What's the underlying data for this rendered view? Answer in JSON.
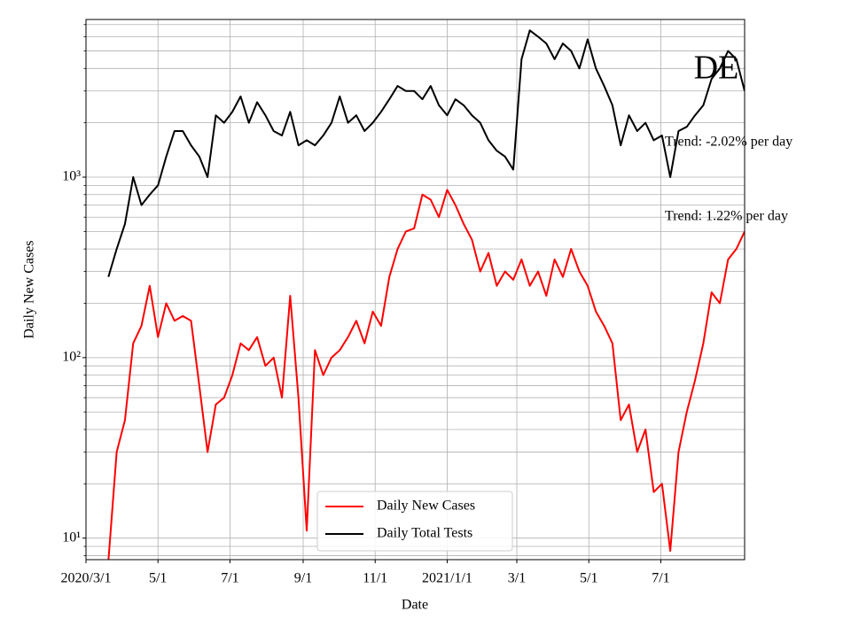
{
  "chart_data": {
    "type": "line",
    "log_scale_y": true,
    "grid": true,
    "legend": "lower center",
    "xlabel": "Date",
    "ylabel": "Daily New Cases",
    "annotations": [
      "DE",
      "Trend: -2.02% per day",
      "Trend: 1.22% per day"
    ],
    "x": [
      "2020-03-20",
      "2020-03-27",
      "2020-04-03",
      "2020-04-10",
      "2020-04-17",
      "2020-04-24",
      "2020-05-01",
      "2020-05-08",
      "2020-05-15",
      "2020-05-22",
      "2020-05-29",
      "2020-06-05",
      "2020-06-12",
      "2020-06-19",
      "2020-06-26",
      "2020-07-03",
      "2020-07-10",
      "2020-07-17",
      "2020-07-24",
      "2020-07-31",
      "2020-08-07",
      "2020-08-14",
      "2020-08-21",
      "2020-08-28",
      "2020-09-04",
      "2020-09-11",
      "2020-09-18",
      "2020-09-25",
      "2020-10-02",
      "2020-10-09",
      "2020-10-16",
      "2020-10-23",
      "2020-10-30",
      "2020-11-06",
      "2020-11-13",
      "2020-11-20",
      "2020-11-27",
      "2020-12-04",
      "2020-12-11",
      "2020-12-18",
      "2020-12-25",
      "2021-01-01",
      "2021-01-08",
      "2021-01-15",
      "2021-01-22",
      "2021-01-29",
      "2021-02-05",
      "2021-02-12",
      "2021-02-19",
      "2021-02-26",
      "2021-03-05",
      "2021-03-12",
      "2021-03-19",
      "2021-03-26",
      "2021-04-02",
      "2021-04-09",
      "2021-04-16",
      "2021-04-23",
      "2021-04-30",
      "2021-05-07",
      "2021-05-14",
      "2021-05-21",
      "2021-05-28",
      "2021-06-04",
      "2021-06-11",
      "2021-06-18",
      "2021-06-25",
      "2021-07-02",
      "2021-07-09",
      "2021-07-16",
      "2021-07-23",
      "2021-07-30",
      "2021-08-06",
      "2021-08-13",
      "2021-08-20",
      "2021-08-27",
      "2021-09-03",
      "2021-09-10"
    ],
    "series": [
      {
        "name": "Daily New Cases",
        "color": "#ff0000",
        "values": [
          7.5,
          30,
          45,
          120,
          150,
          250,
          130,
          200,
          160,
          170,
          160,
          70,
          30,
          55,
          60,
          80,
          120,
          110,
          130,
          90,
          100,
          60,
          220,
          60,
          11,
          110,
          80,
          100,
          110,
          130,
          160,
          120,
          180,
          150,
          280,
          400,
          500,
          520,
          800,
          750,
          600,
          850,
          700,
          550,
          450,
          300,
          380,
          250,
          300,
          270,
          350,
          250,
          300,
          220,
          350,
          280,
          400,
          300,
          250,
          180,
          150,
          120,
          45,
          55,
          30,
          40,
          18,
          20,
          8.5,
          30,
          50,
          75,
          120,
          230,
          200,
          350,
          400,
          500
        ]
      },
      {
        "name": "Daily Total Tests",
        "color": "#000000",
        "values": [
          280,
          400,
          550,
          1000,
          700,
          800,
          900,
          1300,
          1800,
          1800,
          1500,
          1300,
          1000,
          2200,
          2000,
          2300,
          2800,
          2000,
          2600,
          2200,
          1800,
          1700,
          2300,
          1500,
          1600,
          1500,
          1700,
          2000,
          2800,
          2000,
          2200,
          1800,
          2000,
          2300,
          2700,
          3200,
          3000,
          3000,
          2700,
          3200,
          2500,
          2200,
          2700,
          2500,
          2200,
          2000,
          1600,
          1400,
          1300,
          1100,
          4500,
          6500,
          6000,
          5500,
          4500,
          5500,
          5000,
          4000,
          5800,
          4000,
          3200,
          2500,
          1500,
          2200,
          1800,
          2000,
          1600,
          1700,
          1000,
          1800,
          1900,
          2200,
          2500,
          3500,
          4000,
          5000,
          4500,
          3000
        ]
      }
    ],
    "xlim": [
      "2020-03-01",
      "2021-09-10"
    ],
    "xticks": [
      {
        "value": "2020-03-01",
        "label": "2020/3/1"
      },
      {
        "value": "2020-05-01",
        "label": "5/1"
      },
      {
        "value": "2020-07-01",
        "label": "7/1"
      },
      {
        "value": "2020-09-01",
        "label": "9/1"
      },
      {
        "value": "2020-11-01",
        "label": "11/1"
      },
      {
        "value": "2021-01-01",
        "label": "2021/1/1"
      },
      {
        "value": "2021-03-01",
        "label": "3/1"
      },
      {
        "value": "2021-05-01",
        "label": "5/1"
      },
      {
        "value": "2021-07-01",
        "label": "7/1"
      }
    ],
    "ylim": [
      7.6,
      7470
    ],
    "yticks": [
      {
        "value": 10,
        "label": "10¹"
      },
      {
        "value": 100,
        "label": "10²"
      },
      {
        "value": 1000,
        "label": "10³"
      }
    ],
    "yminorticks": [
      8,
      9,
      20,
      30,
      40,
      50,
      60,
      70,
      80,
      90,
      200,
      300,
      400,
      500,
      600,
      700,
      800,
      900,
      2000,
      3000,
      4000,
      5000,
      6000,
      7000
    ]
  }
}
